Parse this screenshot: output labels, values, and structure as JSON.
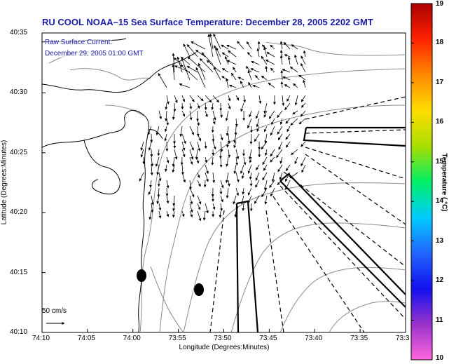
{
  "title": "RU COOL   NOAA–15  Sea Surface Temperature:  December 28, 2005 2202 GMT",
  "current_label_line1": "Raw Surface Current:",
  "current_label_line2": "December 29, 2005 01:00 GMT",
  "x_axis_title": "Longitude (Degrees:Minutes)",
  "y_axis_title": "Latitude (Degrees:Minutes)",
  "x_ticks": [
    "74:10",
    "74:05",
    "74:00",
    "73:55",
    "73:50",
    "73:45",
    "73:40",
    "73:35",
    "73:3"
  ],
  "y_ticks": [
    "40:35",
    "40:30",
    "40:25",
    "40:20",
    "40:15",
    "40:10"
  ],
  "colorbar": {
    "title": "Temperature ( °C)",
    "ticks": [
      "19",
      "18",
      "17",
      "16",
      "15",
      "14",
      "13",
      "12",
      "11",
      "10"
    ],
    "min": 10,
    "max": 19,
    "colors": [
      "#ff66dd",
      "#9933cc",
      "#1111ee",
      "#2266ff",
      "#00ccff",
      "#00ee66",
      "#aadd00",
      "#ffdd00",
      "#ff8800",
      "#ff2200",
      "#aa0000"
    ]
  },
  "scale_label": "50 cm/s",
  "colors": {
    "title_blue": "#1a1aa8",
    "land": "#ffffff",
    "coast": "#000000",
    "bathymetry": "#888888"
  }
}
